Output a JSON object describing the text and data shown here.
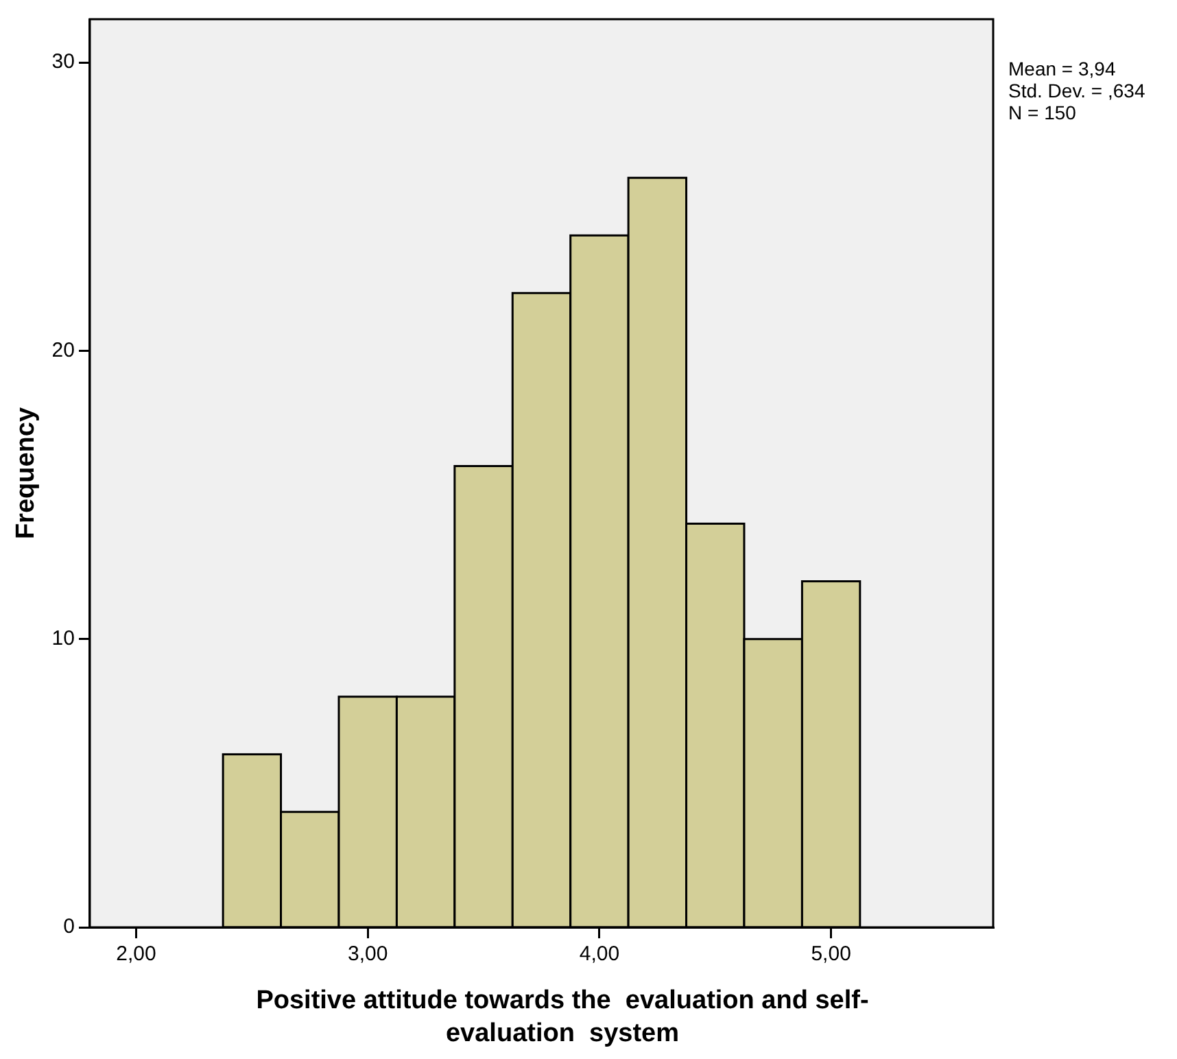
{
  "chart_data": {
    "type": "histogram",
    "xlabel": "Positive attitude towards the  evaluation and self-evaluation  system",
    "ylabel": "Frequency",
    "bins": [
      2.375,
      2.625,
      2.875,
      3.125,
      3.375,
      3.625,
      3.875,
      4.125,
      4.375,
      4.625,
      4.875,
      5.125
    ],
    "values": [
      6,
      4,
      8,
      8,
      16,
      22,
      24,
      26,
      14,
      10,
      12
    ],
    "color": "#d3cf98",
    "xlim": [
      1.8,
      5.7
    ],
    "xticks": [
      {
        "value": 2,
        "label": "2,00"
      },
      {
        "value": 3,
        "label": "3,00"
      },
      {
        "value": 4,
        "label": "4,00"
      },
      {
        "value": 5,
        "label": "5,00"
      }
    ],
    "ylim": [
      0,
      31.5
    ],
    "yticks": [
      0,
      10,
      20,
      30
    ],
    "grid": false,
    "legend": false,
    "annotations": [
      "Mean = 3,94",
      "Std. Dev. = ,634",
      "N = 150"
    ]
  }
}
